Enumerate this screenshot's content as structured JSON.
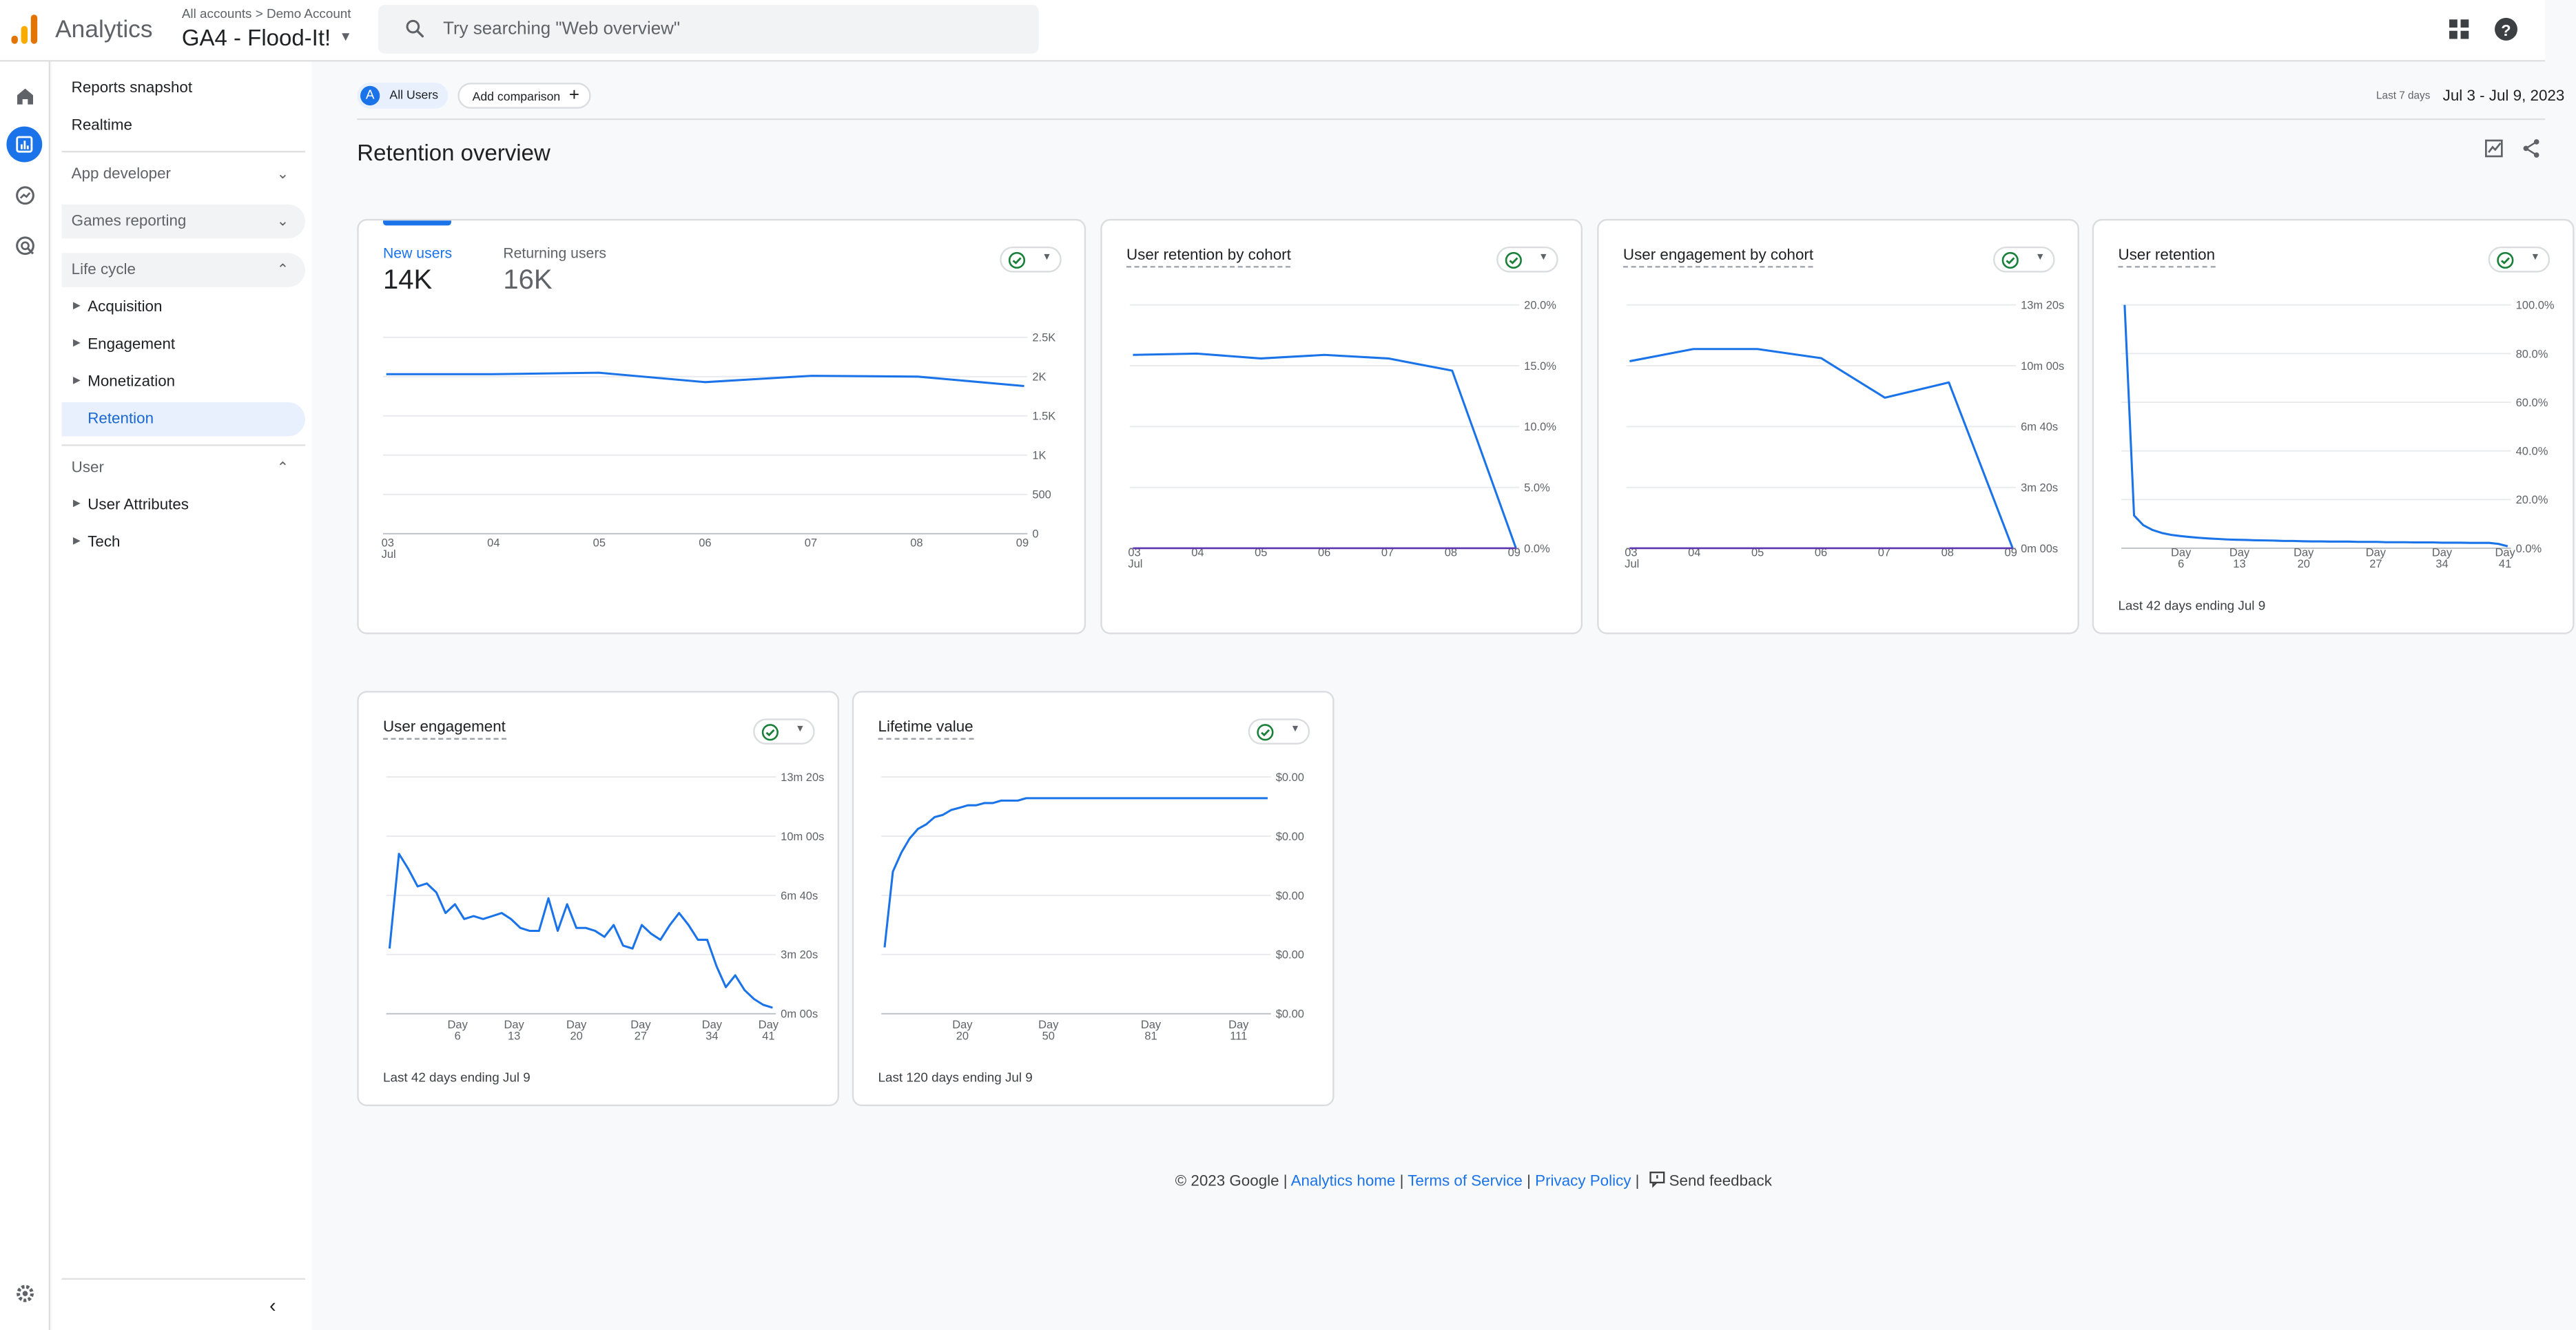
{
  "header": {
    "brand": "Analytics",
    "account_path": "All accounts > Demo Account",
    "property": "GA4 - Flood-It!",
    "search_placeholder": "Try searching \"Web overview\"",
    "icons": [
      "analytics-logo",
      "search-icon",
      "apps-grid-icon",
      "help-icon"
    ]
  },
  "rail": {
    "icons": [
      "home-icon",
      "reports-icon",
      "explore-icon",
      "advertising-icon",
      "settings-icon"
    ],
    "active": "reports-icon"
  },
  "nav": {
    "top_items": [
      "Reports snapshot",
      "Realtime"
    ],
    "sections": [
      {
        "label": "App developer",
        "expanded": false
      },
      {
        "label": "Games reporting",
        "expanded": false
      },
      {
        "label": "Life cycle",
        "expanded": true,
        "items": [
          "Acquisition",
          "Engagement",
          "Monetization",
          "Retention"
        ]
      },
      {
        "label": "User",
        "expanded": true,
        "items": [
          "User Attributes",
          "Tech"
        ]
      }
    ],
    "selected": "Retention"
  },
  "toolbar": {
    "segment_badge": "A",
    "segment": "All Users",
    "add_comparison": "Add comparison",
    "date_label": "Last 7 days",
    "date_range": "Jul 3 - Jul 9, 2023"
  },
  "page_title": "Retention overview",
  "cards": {
    "users": {
      "tab_new_label": "New users",
      "tab_new_value": "14K",
      "tab_returning_label": "Returning users",
      "tab_returning_value": "16K"
    },
    "retention_cohort": {
      "title": "User retention by cohort"
    },
    "engagement_cohort": {
      "title": "User engagement by cohort"
    },
    "retention": {
      "title": "User retention",
      "footer": "Last 42 days ending Jul 9"
    },
    "engagement": {
      "title": "User engagement",
      "footer": "Last 42 days ending Jul 9"
    },
    "ltv": {
      "title": "Lifetime value",
      "footer": "Last 120 days ending Jul 9"
    }
  },
  "footer": {
    "copyright": "© 2023 Google |",
    "links": [
      "Analytics home",
      "Terms of Service",
      "Privacy Policy"
    ],
    "sep": "|",
    "feedback": "Send feedback"
  },
  "colors": {
    "accent": "#1a73e8",
    "series2": "#5e35b1",
    "check": "#188038"
  },
  "chart_data": [
    {
      "id": "users",
      "type": "line",
      "x": [
        "03",
        "04",
        "05",
        "06",
        "07",
        "08",
        "09"
      ],
      "x_sub": [
        "Jul",
        "",
        "",
        "",
        "",
        "",
        ""
      ],
      "y_ticks": [
        "2.5K",
        "2K",
        "1.5K",
        "1K",
        "500",
        "0"
      ],
      "ylim": [
        0,
        2500
      ],
      "series": [
        {
          "values": [
            2030,
            2030,
            2050,
            1930,
            2010,
            2000,
            1880
          ]
        }
      ]
    },
    {
      "id": "retention_cohort",
      "type": "line",
      "x": [
        "03",
        "04",
        "05",
        "06",
        "07",
        "08",
        "09"
      ],
      "x_sub": [
        "Jul",
        "",
        "",
        "",
        "",
        "",
        ""
      ],
      "y_ticks": [
        "20.0%",
        "15.0%",
        "10.0%",
        "5.0%",
        "0.0%"
      ],
      "ylim": [
        0,
        20
      ],
      "series": [
        {
          "values": [
            15.9,
            16.0,
            15.6,
            15.9,
            15.6,
            14.6,
            0
          ]
        },
        {
          "values": [
            0,
            0,
            0,
            0,
            0,
            0,
            0
          ]
        }
      ]
    },
    {
      "id": "engagement_cohort",
      "type": "line",
      "x": [
        "03",
        "04",
        "05",
        "06",
        "07",
        "08",
        "09"
      ],
      "x_sub": [
        "Jul",
        "",
        "",
        "",
        "",
        "",
        ""
      ],
      "y_ticks": [
        "13m 20s",
        "10m 00s",
        "6m 40s",
        "3m 20s",
        "0m 00s"
      ],
      "ylim": [
        0,
        800
      ],
      "series": [
        {
          "values": [
            615,
            655,
            655,
            625,
            495,
            545,
            0
          ]
        },
        {
          "values": [
            0,
            0,
            0,
            0,
            0,
            0,
            0
          ]
        }
      ]
    },
    {
      "id": "retention",
      "type": "line",
      "x_ticks": [
        "Day 6",
        "Day 13",
        "Day 20",
        "Day 27",
        "Day 34",
        "Day 41"
      ],
      "y_ticks": [
        "100.0%",
        "80.0%",
        "60.0%",
        "40.0%",
        "20.0%",
        "0.0%"
      ],
      "ylim": [
        0,
        100
      ],
      "series": [
        {
          "values": [
            100,
            13.5,
            9.5,
            7.5,
            6.3,
            5.5,
            5.0,
            4.6,
            4.3,
            4.0,
            3.8,
            3.6,
            3.5,
            3.4,
            3.3,
            3.2,
            3.1,
            3.0,
            3.0,
            2.9,
            2.8,
            2.8,
            2.7,
            2.7,
            2.7,
            2.6,
            2.6,
            2.6,
            2.5,
            2.5,
            2.5,
            2.4,
            2.4,
            2.4,
            2.3,
            2.3,
            2.3,
            2.2,
            2.2,
            2.2,
            1.8,
            0.8
          ]
        }
      ]
    },
    {
      "id": "engagement",
      "type": "line",
      "x_ticks": [
        "Day 6",
        "Day 13",
        "Day 20",
        "Day 27",
        "Day 34",
        "Day 41"
      ],
      "y_ticks": [
        "13m 20s",
        "10m 00s",
        "6m 40s",
        "3m 20s",
        "0m 00s"
      ],
      "ylim": [
        0,
        800
      ],
      "series": [
        {
          "values": [
            220,
            540,
            490,
            430,
            440,
            410,
            340,
            370,
            320,
            330,
            320,
            330,
            340,
            320,
            290,
            280,
            280,
            390,
            280,
            370,
            290,
            290,
            280,
            260,
            300,
            230,
            220,
            300,
            270,
            250,
            300,
            340,
            300,
            250,
            250,
            160,
            90,
            130,
            80,
            50,
            30,
            20
          ]
        }
      ]
    },
    {
      "id": "ltv",
      "type": "line",
      "x_ticks": [
        "Day 20",
        "Day 50",
        "Day 81",
        "Day 111"
      ],
      "y_ticks": [
        "$0.00",
        "$0.00",
        "$0.00",
        "$0.00",
        "$0.00"
      ],
      "ylim": [
        0,
        1
      ],
      "series": [
        {
          "values": [
            0.28,
            0.6,
            0.68,
            0.74,
            0.78,
            0.8,
            0.83,
            0.84,
            0.86,
            0.87,
            0.88,
            0.88,
            0.89,
            0.89,
            0.9,
            0.9,
            0.9,
            0.91,
            0.91,
            0.91,
            0.91,
            0.91,
            0.91,
            0.91,
            0.91,
            0.91,
            0.91,
            0.91,
            0.91,
            0.91,
            0.91,
            0.91,
            0.91,
            0.91,
            0.91,
            0.91,
            0.91,
            0.91,
            0.91,
            0.91,
            0.91,
            0.91,
            0.91,
            0.91,
            0.91,
            0.91,
            0.91
          ]
        }
      ]
    }
  ]
}
